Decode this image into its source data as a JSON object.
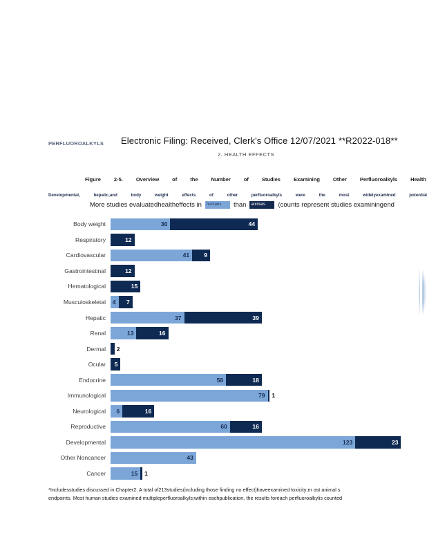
{
  "page": {
    "header_left": "PERFLUOROALKYLS",
    "title": "Electronic Filing: Received, Clerk's Office 12/07/2021 **R2022-018**",
    "section_heading": "2.  HEALTH EFFECTS"
  },
  "figure": {
    "caption_line1": "Figure 2-5. Overview of the Number of Studies Examining Other Perfluoroalkyls Health",
    "caption_line2": "Developmental, hepatic,and body weight effects of other perfluoroalkyls were the most widelyexamined potential",
    "subcaption_pre": "More studies evaluatedhealtheffects in",
    "legend_humans_label": "humans",
    "subcaption_mid": "than",
    "legend_animals_label": "animals",
    "subcaption_post": "(counts represent studies examiningend"
  },
  "footnote": {
    "line1": "*Includesstudies discussed in Chapter2.  A total of213studies(including those finding no effect)haveexamined toxicity;m   ost animal s",
    "line2": "endpoints.  Most human studies examined multipleperfluoroalkyls;within eachpublication, the results foreach perfluoroalkylis  counted"
  },
  "chart_data": {
    "type": "bar",
    "orientation": "horizontal-stacked",
    "title": "Figure 2-5. Overview of the Number of Studies Examining Other Perfluoroalkyls Health",
    "axis_visible": false,
    "grid": false,
    "legend_position": "inline-in-caption",
    "categories": [
      "Body weight",
      "Respiratory",
      "Cardiovascular",
      "Gastrointestinal",
      "Hematological",
      "Musculoskeletal",
      "Hepatic",
      "Renal",
      "Dermal",
      "Ocular",
      "Endocrine",
      "Immunological",
      "Neurological",
      "Reproductive",
      "Developmental",
      "Other Noncancer",
      "Cancer"
    ],
    "series": [
      {
        "name": "humans",
        "color": "#7CA6D8",
        "values": [
          30,
          0,
          41,
          0,
          0,
          4,
          37,
          13,
          0,
          0,
          58,
          79,
          6,
          60,
          123,
          43,
          15
        ]
      },
      {
        "name": "animals",
        "color": "#0F2A52",
        "values": [
          44,
          12,
          9,
          12,
          15,
          7,
          39,
          16,
          2,
          5,
          18,
          1,
          16,
          16,
          23,
          0,
          1
        ]
      }
    ],
    "xlim": [
      0,
      150
    ]
  },
  "colors": {
    "humans": "#7CA6D8",
    "animals": "#0F2A52",
    "value_on_light": "#152B52",
    "value_on_dark": "#FFFFFF",
    "value_outside": "#141414"
  }
}
